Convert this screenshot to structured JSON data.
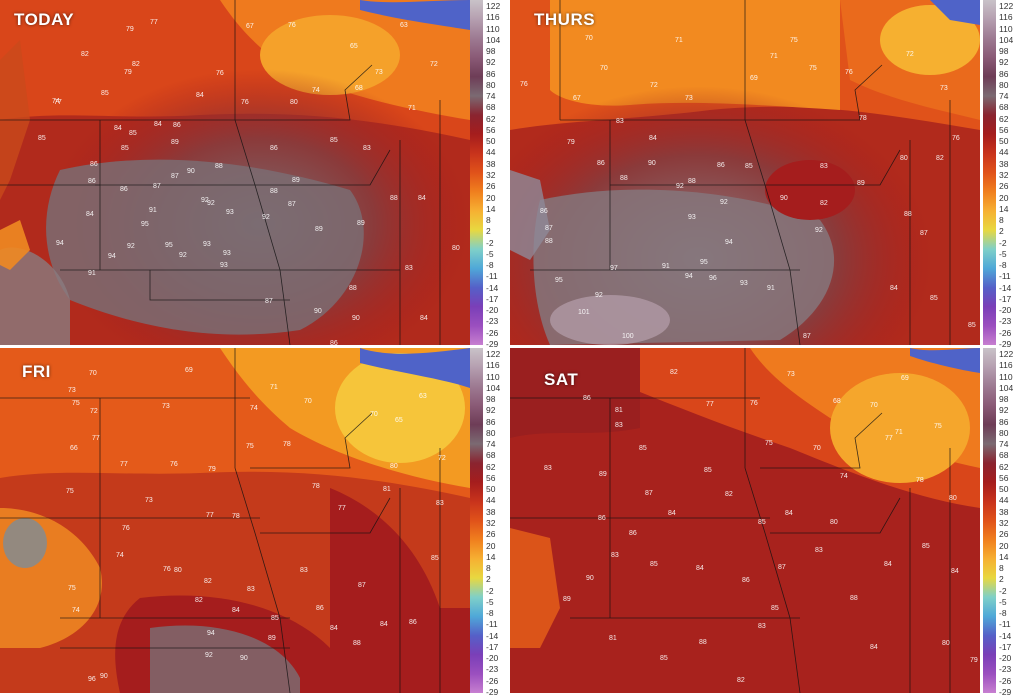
{
  "panels": [
    {
      "label": "TODAY"
    },
    {
      "label": "THURS"
    },
    {
      "label": "FRI"
    },
    {
      "label": "SAT"
    }
  ],
  "colorbar": {
    "ticks": [
      "122",
      "116",
      "110",
      "104",
      "98",
      "92",
      "86",
      "80",
      "74",
      "68",
      "62",
      "56",
      "50",
      "44",
      "38",
      "32",
      "26",
      "20",
      "14",
      "8",
      "2",
      "-2",
      "-5",
      "-8",
      "-11",
      "-14",
      "-17",
      "-20",
      "-23",
      "-26",
      "-29"
    ],
    "colors": [
      "#c9c2c8",
      "#b59fb0",
      "#9d7a92",
      "#8a5a76",
      "#6e3d57",
      "#7b6a72",
      "#8a2430",
      "#a51d1d",
      "#c8331c",
      "#e0521a",
      "#f07f1e",
      "#f6b032",
      "#e8d840",
      "#7fd0c8",
      "#4fa8d8",
      "#5560c8",
      "#7a3fb8",
      "#9b4fbf",
      "#c77fd0"
    ]
  },
  "stations": {
    "TODAY": [
      [
        "77",
        150,
        24
      ],
      [
        "79",
        126,
        31
      ],
      [
        "82",
        81,
        56
      ],
      [
        "82",
        132,
        66
      ],
      [
        "76",
        216,
        75
      ],
      [
        "79",
        124,
        74
      ],
      [
        "85",
        101,
        95
      ],
      [
        "84",
        196,
        97
      ],
      [
        "84",
        114,
        130
      ],
      [
        "85",
        129,
        135
      ],
      [
        "77",
        54,
        104
      ],
      [
        "74",
        52,
        103
      ],
      [
        "85",
        38,
        140
      ],
      [
        "76",
        241,
        104
      ],
      [
        "84",
        154,
        126
      ],
      [
        "86",
        173,
        127
      ],
      [
        "85",
        121,
        150
      ],
      [
        "89",
        171,
        144
      ],
      [
        "88",
        215,
        168
      ],
      [
        "87",
        171,
        178
      ],
      [
        "86",
        90,
        166
      ],
      [
        "90",
        187,
        173
      ],
      [
        "87",
        153,
        188
      ],
      [
        "86",
        120,
        191
      ],
      [
        "86",
        88,
        183
      ],
      [
        "84",
        86,
        216
      ],
      [
        "91",
        149,
        212
      ],
      [
        "92",
        201,
        202
      ],
      [
        "93",
        226,
        214
      ],
      [
        "95",
        141,
        226
      ],
      [
        "92",
        207,
        205
      ],
      [
        "94",
        56,
        245
      ],
      [
        "92",
        127,
        248
      ],
      [
        "95",
        165,
        247
      ],
      [
        "94",
        108,
        258
      ],
      [
        "92",
        179,
        257
      ],
      [
        "93",
        203,
        246
      ],
      [
        "93",
        223,
        255
      ],
      [
        "92",
        262,
        219
      ],
      [
        "91",
        88,
        275
      ],
      [
        "93",
        220,
        267
      ],
      [
        "88",
        270,
        193
      ],
      [
        "89",
        292,
        182
      ],
      [
        "87",
        288,
        206
      ],
      [
        "89",
        315,
        231
      ],
      [
        "89",
        357,
        225
      ],
      [
        "88",
        349,
        290
      ],
      [
        "90",
        314,
        313
      ],
      [
        "87",
        265,
        303
      ],
      [
        "86",
        330,
        345
      ],
      [
        "90",
        352,
        320
      ],
      [
        "88",
        390,
        200
      ],
      [
        "84",
        420,
        320
      ],
      [
        "83",
        405,
        270
      ],
      [
        "80",
        452,
        250
      ],
      [
        "68",
        355,
        90
      ],
      [
        "72",
        430,
        66
      ],
      [
        "74",
        312,
        92
      ],
      [
        "73",
        375,
        74
      ],
      [
        "71",
        408,
        110
      ],
      [
        "63",
        400,
        27
      ],
      [
        "67",
        246,
        28
      ],
      [
        "76",
        288,
        27
      ],
      [
        "65",
        350,
        48
      ],
      [
        "80",
        290,
        104
      ],
      [
        "85",
        330,
        142
      ],
      [
        "86",
        270,
        150
      ],
      [
        "83",
        363,
        150
      ],
      [
        "84",
        418,
        200
      ]
    ],
    "THURS": [
      [
        "70",
        585,
        40
      ],
      [
        "71",
        675,
        42
      ],
      [
        "70",
        600,
        70
      ],
      [
        "72",
        650,
        87
      ],
      [
        "73",
        685,
        100
      ],
      [
        "76",
        520,
        86
      ],
      [
        "67",
        573,
        100
      ],
      [
        "79",
        567,
        144
      ],
      [
        "83",
        616,
        123
      ],
      [
        "84",
        649,
        140
      ],
      [
        "86",
        597,
        165
      ],
      [
        "88",
        620,
        180
      ],
      [
        "90",
        648,
        165
      ],
      [
        "86",
        717,
        167
      ],
      [
        "85",
        745,
        168
      ],
      [
        "88",
        688,
        183
      ],
      [
        "92",
        676,
        188
      ],
      [
        "92",
        720,
        204
      ],
      [
        "93",
        688,
        219
      ],
      [
        "94",
        725,
        244
      ],
      [
        "91",
        662,
        268
      ],
      [
        "94",
        685,
        278
      ],
      [
        "95",
        700,
        264
      ],
      [
        "96",
        709,
        280
      ],
      [
        "93",
        740,
        285
      ],
      [
        "91",
        767,
        290
      ],
      [
        "101",
        578,
        314
      ],
      [
        "100",
        622,
        338
      ],
      [
        "92",
        595,
        297
      ],
      [
        "97",
        610,
        270
      ],
      [
        "95",
        555,
        282
      ],
      [
        "86",
        540,
        213
      ],
      [
        "87",
        545,
        230
      ],
      [
        "88",
        545,
        243
      ],
      [
        "90",
        780,
        200
      ],
      [
        "92",
        815,
        232
      ],
      [
        "89",
        857,
        185
      ],
      [
        "88",
        904,
        216
      ],
      [
        "87",
        920,
        235
      ],
      [
        "84",
        890,
        290
      ],
      [
        "85",
        930,
        300
      ],
      [
        "87",
        803,
        338
      ],
      [
        "85",
        968,
        327
      ],
      [
        "82",
        820,
        205
      ],
      [
        "83",
        820,
        168
      ],
      [
        "80",
        900,
        160
      ],
      [
        "78",
        859,
        120
      ],
      [
        "76",
        845,
        74
      ],
      [
        "75",
        809,
        70
      ],
      [
        "71",
        770,
        58
      ],
      [
        "69",
        750,
        80
      ],
      [
        "75",
        790,
        42
      ],
      [
        "72",
        906,
        56
      ],
      [
        "73",
        940,
        90
      ],
      [
        "76",
        952,
        140
      ],
      [
        "82",
        936,
        160
      ]
    ],
    "FRI": [
      [
        "70",
        89,
        375
      ],
      [
        "73",
        68,
        392
      ],
      [
        "75",
        72,
        405
      ],
      [
        "72",
        90,
        413
      ],
      [
        "73",
        162,
        408
      ],
      [
        "69",
        185,
        372
      ],
      [
        "66",
        70,
        450
      ],
      [
        "75",
        66,
        493
      ],
      [
        "77",
        92,
        440
      ],
      [
        "77",
        120,
        466
      ],
      [
        "76",
        170,
        466
      ],
      [
        "79",
        208,
        471
      ],
      [
        "73",
        145,
        502
      ],
      [
        "77",
        206,
        517
      ],
      [
        "78",
        232,
        518
      ],
      [
        "76",
        122,
        530
      ],
      [
        "74",
        116,
        557
      ],
      [
        "76",
        163,
        571
      ],
      [
        "75",
        68,
        590
      ],
      [
        "74",
        72,
        612
      ],
      [
        "80",
        174,
        572
      ],
      [
        "82",
        204,
        583
      ],
      [
        "83",
        247,
        591
      ],
      [
        "82",
        195,
        602
      ],
      [
        "84",
        232,
        612
      ],
      [
        "85",
        271,
        620
      ],
      [
        "83",
        300,
        572
      ],
      [
        "89",
        268,
        640
      ],
      [
        "90",
        240,
        660
      ],
      [
        "92",
        205,
        657
      ],
      [
        "94",
        207,
        635
      ],
      [
        "96",
        88,
        681
      ],
      [
        "90",
        100,
        678
      ],
      [
        "86",
        316,
        610
      ],
      [
        "87",
        358,
        587
      ],
      [
        "84",
        330,
        630
      ],
      [
        "84",
        380,
        626
      ],
      [
        "88",
        353,
        645
      ],
      [
        "86",
        409,
        624
      ],
      [
        "85",
        431,
        560
      ],
      [
        "83",
        436,
        505
      ],
      [
        "81",
        383,
        491
      ],
      [
        "80",
        390,
        468
      ],
      [
        "77",
        338,
        510
      ],
      [
        "78",
        312,
        488
      ],
      [
        "72",
        438,
        460
      ],
      [
        "70",
        370,
        416
      ],
      [
        "63",
        419,
        398
      ],
      [
        "65",
        395,
        422
      ],
      [
        "70",
        304,
        403
      ],
      [
        "71",
        270,
        389
      ],
      [
        "74",
        250,
        410
      ],
      [
        "78",
        283,
        446
      ],
      [
        "75",
        246,
        448
      ]
    ],
    "SAT": [
      [
        "86",
        583,
        400
      ],
      [
        "82",
        670,
        374
      ],
      [
        "81",
        615,
        412
      ],
      [
        "77",
        706,
        406
      ],
      [
        "83",
        615,
        427
      ],
      [
        "85",
        639,
        450
      ],
      [
        "83",
        544,
        470
      ],
      [
        "89",
        599,
        476
      ],
      [
        "87",
        645,
        495
      ],
      [
        "84",
        668,
        515
      ],
      [
        "85",
        704,
        472
      ],
      [
        "82",
        725,
        496
      ],
      [
        "85",
        758,
        524
      ],
      [
        "84",
        785,
        515
      ],
      [
        "86",
        598,
        520
      ],
      [
        "86",
        629,
        535
      ],
      [
        "83",
        611,
        557
      ],
      [
        "90",
        586,
        580
      ],
      [
        "89",
        563,
        601
      ],
      [
        "85",
        650,
        566
      ],
      [
        "84",
        696,
        570
      ],
      [
        "86",
        742,
        582
      ],
      [
        "87",
        778,
        569
      ],
      [
        "83",
        815,
        552
      ],
      [
        "85",
        771,
        610
      ],
      [
        "83",
        758,
        628
      ],
      [
        "88",
        850,
        600
      ],
      [
        "84",
        884,
        566
      ],
      [
        "85",
        922,
        548
      ],
      [
        "84",
        951,
        573
      ],
      [
        "81",
        609,
        640
      ],
      [
        "85",
        660,
        660
      ],
      [
        "88",
        699,
        644
      ],
      [
        "82",
        737,
        682
      ],
      [
        "84",
        870,
        649
      ],
      [
        "80",
        942,
        645
      ],
      [
        "79",
        970,
        662
      ],
      [
        "80",
        949,
        500
      ],
      [
        "78",
        916,
        482
      ],
      [
        "77",
        885,
        440
      ],
      [
        "74",
        840,
        478
      ],
      [
        "70",
        870,
        407
      ],
      [
        "71",
        895,
        434
      ],
      [
        "75",
        934,
        428
      ],
      [
        "69",
        901,
        380
      ],
      [
        "68",
        833,
        403
      ],
      [
        "73",
        787,
        376
      ],
      [
        "75",
        765,
        445
      ],
      [
        "76",
        750,
        405
      ],
      [
        "70",
        813,
        450
      ],
      [
        "80",
        830,
        524
      ]
    ]
  }
}
